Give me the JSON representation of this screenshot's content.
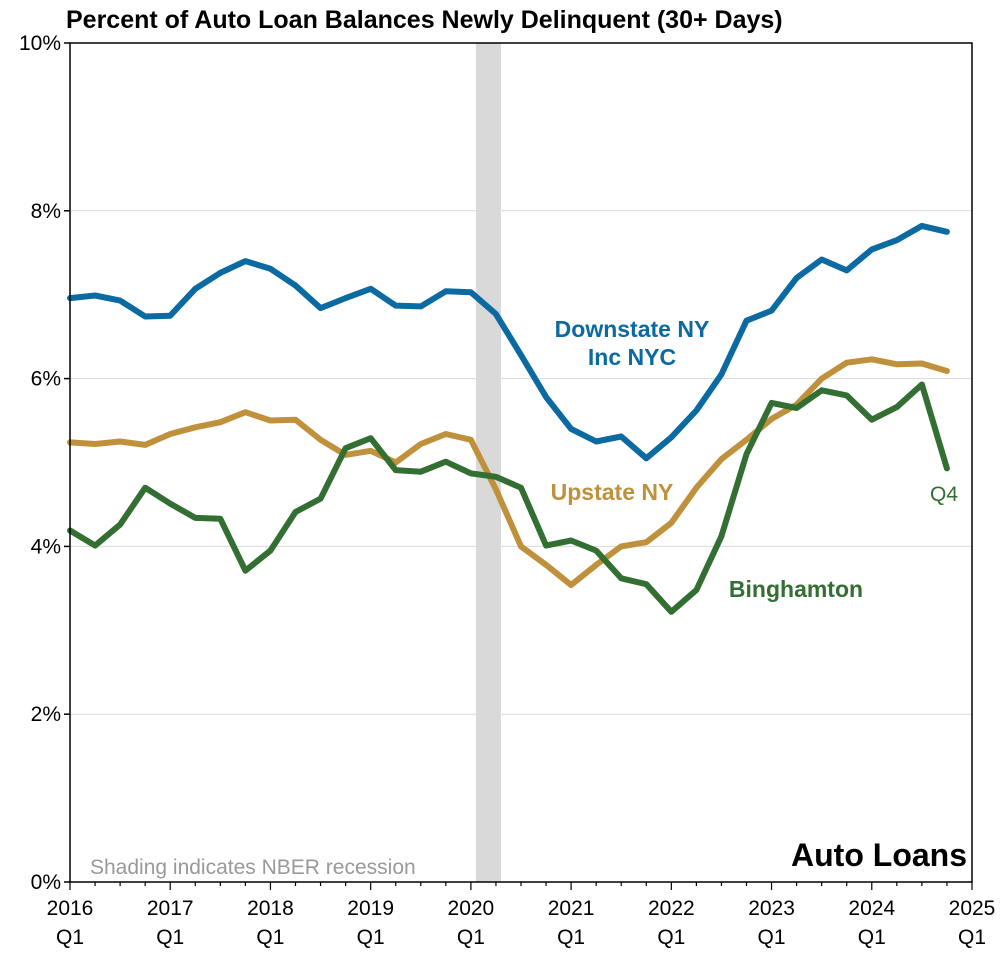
{
  "colors": {
    "downstate": "#0a6aa1",
    "upstate": "#c0913c",
    "binghamton": "#336e32",
    "recession": "#d9d9d9",
    "grid": "#d9d9d9",
    "note": "#999999"
  },
  "chart_data": {
    "type": "line",
    "title": "Percent of Auto Loan Balances Newly Delinquent (30+ Days)",
    "corner_label": "Auto Loans",
    "note": "Shading indicates NBER recession",
    "end_label": "Q4",
    "ylim": [
      0,
      10
    ],
    "y_ticks": [
      {
        "value": 0,
        "label": "0%"
      },
      {
        "value": 2,
        "label": "2%"
      },
      {
        "value": 4,
        "label": "4%"
      },
      {
        "value": 6,
        "label": "6%"
      },
      {
        "value": 8,
        "label": "8%"
      },
      {
        "value": 10,
        "label": "10%"
      }
    ],
    "xlim": [
      2016.0,
      2025.0
    ],
    "x_ticks": [
      {
        "value": 2016,
        "year": "2016",
        "quarter": "Q1"
      },
      {
        "value": 2017,
        "year": "2017",
        "quarter": "Q1"
      },
      {
        "value": 2018,
        "year": "2018",
        "quarter": "Q1"
      },
      {
        "value": 2019,
        "year": "2019",
        "quarter": "Q1"
      },
      {
        "value": 2020,
        "year": "2020",
        "quarter": "Q1"
      },
      {
        "value": 2021,
        "year": "2021",
        "quarter": "Q1"
      },
      {
        "value": 2022,
        "year": "2022",
        "quarter": "Q1"
      },
      {
        "value": 2023,
        "year": "2023",
        "quarter": "Q1"
      },
      {
        "value": 2024,
        "year": "2024",
        "quarter": "Q1"
      },
      {
        "value": 2025,
        "year": "2025",
        "quarter": "Q1"
      }
    ],
    "recession": {
      "start": 2020.05,
      "end": 2020.3
    },
    "x": [
      2016.0,
      2016.25,
      2016.5,
      2016.75,
      2017.0,
      2017.25,
      2017.5,
      2017.75,
      2018.0,
      2018.25,
      2018.5,
      2018.75,
      2019.0,
      2019.25,
      2019.5,
      2019.75,
      2020.0,
      2020.25,
      2020.5,
      2020.75,
      2021.0,
      2021.25,
      2021.5,
      2021.75,
      2022.0,
      2022.25,
      2022.5,
      2022.75,
      2023.0,
      2023.25,
      2023.5,
      2023.75,
      2024.0,
      2024.25,
      2024.5,
      2024.75
    ],
    "series": [
      {
        "key": "downstate",
        "label_lines": [
          "Downstate NY",
          "Inc NYC"
        ],
        "values": [
          6.96,
          6.99,
          6.93,
          6.74,
          6.75,
          7.07,
          7.26,
          7.4,
          7.31,
          7.11,
          6.84,
          6.96,
          7.07,
          6.87,
          6.86,
          7.04,
          7.03,
          6.77,
          6.28,
          5.78,
          5.4,
          5.25,
          5.31,
          5.05,
          5.3,
          5.62,
          6.05,
          6.69,
          6.81,
          7.2,
          7.42,
          7.29,
          7.54,
          7.65,
          7.82,
          7.75
        ]
      },
      {
        "key": "upstate",
        "label_lines": [
          "Upstate NY"
        ],
        "values": [
          5.24,
          5.22,
          5.25,
          5.21,
          5.34,
          5.42,
          5.48,
          5.6,
          5.5,
          5.51,
          5.27,
          5.09,
          5.14,
          5.0,
          5.22,
          5.34,
          5.27,
          4.68,
          4.0,
          3.78,
          3.54,
          3.78,
          4.0,
          4.05,
          4.28,
          4.7,
          5.04,
          5.27,
          5.52,
          5.69,
          6.0,
          6.19,
          6.23,
          6.17,
          6.18,
          6.09
        ]
      },
      {
        "key": "binghamton",
        "label_lines": [
          "Binghamton"
        ],
        "values": [
          4.19,
          4.01,
          4.26,
          4.7,
          4.51,
          4.34,
          4.33,
          3.71,
          3.95,
          4.41,
          4.57,
          5.17,
          5.29,
          4.91,
          4.89,
          5.01,
          4.87,
          4.83,
          4.7,
          4.01,
          4.07,
          3.95,
          3.62,
          3.55,
          3.22,
          3.48,
          4.12,
          5.1,
          5.71,
          5.65,
          5.86,
          5.8,
          5.51,
          5.66,
          5.93,
          4.93
        ]
      }
    ]
  }
}
